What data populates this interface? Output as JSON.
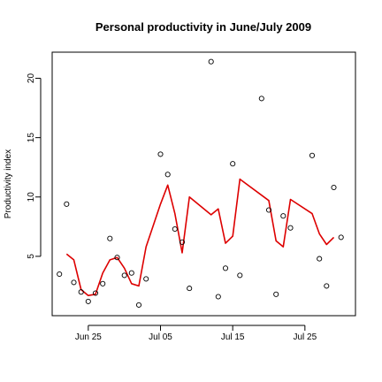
{
  "chart_data": {
    "type": "scatter",
    "title": "Personal productivity in June/July 2009",
    "xlabel": "",
    "ylabel": "Productivity index",
    "x_ticks": [
      {
        "date": "2009-06-25",
        "label": "Jun 25"
      },
      {
        "date": "2009-07-05",
        "label": "Jul 05"
      },
      {
        "date": "2009-07-15",
        "label": "Jul 15"
      },
      {
        "date": "2009-07-25",
        "label": "Jul 25"
      }
    ],
    "y_ticks": [
      5,
      10,
      15,
      20
    ],
    "xlim": [
      "2009-06-20",
      "2009-08-01"
    ],
    "ylim": [
      0,
      22.2
    ],
    "grid": false,
    "point_color": "#000000",
    "line_color": "#dd0000",
    "points": [
      {
        "x": "2009-06-21",
        "y": 3.5
      },
      {
        "x": "2009-06-22",
        "y": 9.4
      },
      {
        "x": "2009-06-23",
        "y": 2.8
      },
      {
        "x": "2009-06-24",
        "y": 2.0
      },
      {
        "x": "2009-06-25",
        "y": 1.2
      },
      {
        "x": "2009-06-26",
        "y": 1.9
      },
      {
        "x": "2009-06-27",
        "y": 2.7
      },
      {
        "x": "2009-06-28",
        "y": 6.5
      },
      {
        "x": "2009-06-29",
        "y": 4.9
      },
      {
        "x": "2009-06-30",
        "y": 3.4
      },
      {
        "x": "2009-07-01",
        "y": 3.6
      },
      {
        "x": "2009-07-02",
        "y": 0.9
      },
      {
        "x": "2009-07-03",
        "y": 3.1
      },
      {
        "x": "2009-07-05",
        "y": 13.6
      },
      {
        "x": "2009-07-06",
        "y": 11.9
      },
      {
        "x": "2009-07-07",
        "y": 7.3
      },
      {
        "x": "2009-07-08",
        "y": 6.2
      },
      {
        "x": "2009-07-09",
        "y": 2.3
      },
      {
        "x": "2009-07-12",
        "y": 21.4
      },
      {
        "x": "2009-07-13",
        "y": 1.6
      },
      {
        "x": "2009-07-14",
        "y": 4.0
      },
      {
        "x": "2009-07-15",
        "y": 12.8
      },
      {
        "x": "2009-07-16",
        "y": 3.4
      },
      {
        "x": "2009-07-19",
        "y": 18.3
      },
      {
        "x": "2009-07-20",
        "y": 8.9
      },
      {
        "x": "2009-07-21",
        "y": 1.8
      },
      {
        "x": "2009-07-22",
        "y": 8.4
      },
      {
        "x": "2009-07-23",
        "y": 7.4
      },
      {
        "x": "2009-07-26",
        "y": 13.5
      },
      {
        "x": "2009-07-27",
        "y": 4.8
      },
      {
        "x": "2009-07-28",
        "y": 2.5
      },
      {
        "x": "2009-07-29",
        "y": 10.8
      },
      {
        "x": "2009-07-30",
        "y": 6.6
      }
    ],
    "smooth_line": [
      {
        "x": "2009-06-22",
        "y": 5.2
      },
      {
        "x": "2009-06-23",
        "y": 4.7
      },
      {
        "x": "2009-06-24",
        "y": 2.2
      },
      {
        "x": "2009-06-25",
        "y": 1.7
      },
      {
        "x": "2009-06-26",
        "y": 1.8
      },
      {
        "x": "2009-06-27",
        "y": 3.6
      },
      {
        "x": "2009-06-28",
        "y": 4.7
      },
      {
        "x": "2009-06-29",
        "y": 4.9
      },
      {
        "x": "2009-06-30",
        "y": 4.0
      },
      {
        "x": "2009-07-01",
        "y": 2.7
      },
      {
        "x": "2009-07-02",
        "y": 2.5
      },
      {
        "x": "2009-07-03",
        "y": 5.8
      },
      {
        "x": "2009-07-05",
        "y": 9.4
      },
      {
        "x": "2009-07-06",
        "y": 11.0
      },
      {
        "x": "2009-07-07",
        "y": 8.6
      },
      {
        "x": "2009-07-08",
        "y": 5.3
      },
      {
        "x": "2009-07-09",
        "y": 10.0
      },
      {
        "x": "2009-07-12",
        "y": 8.5
      },
      {
        "x": "2009-07-13",
        "y": 9.0
      },
      {
        "x": "2009-07-14",
        "y": 6.1
      },
      {
        "x": "2009-07-15",
        "y": 6.7
      },
      {
        "x": "2009-07-16",
        "y": 11.5
      },
      {
        "x": "2009-07-20",
        "y": 9.7
      },
      {
        "x": "2009-07-21",
        "y": 6.3
      },
      {
        "x": "2009-07-22",
        "y": 5.8
      },
      {
        "x": "2009-07-23",
        "y": 9.8
      },
      {
        "x": "2009-07-26",
        "y": 8.6
      },
      {
        "x": "2009-07-27",
        "y": 6.9
      },
      {
        "x": "2009-07-28",
        "y": 6.0
      },
      {
        "x": "2009-07-29",
        "y": 6.6
      }
    ]
  }
}
